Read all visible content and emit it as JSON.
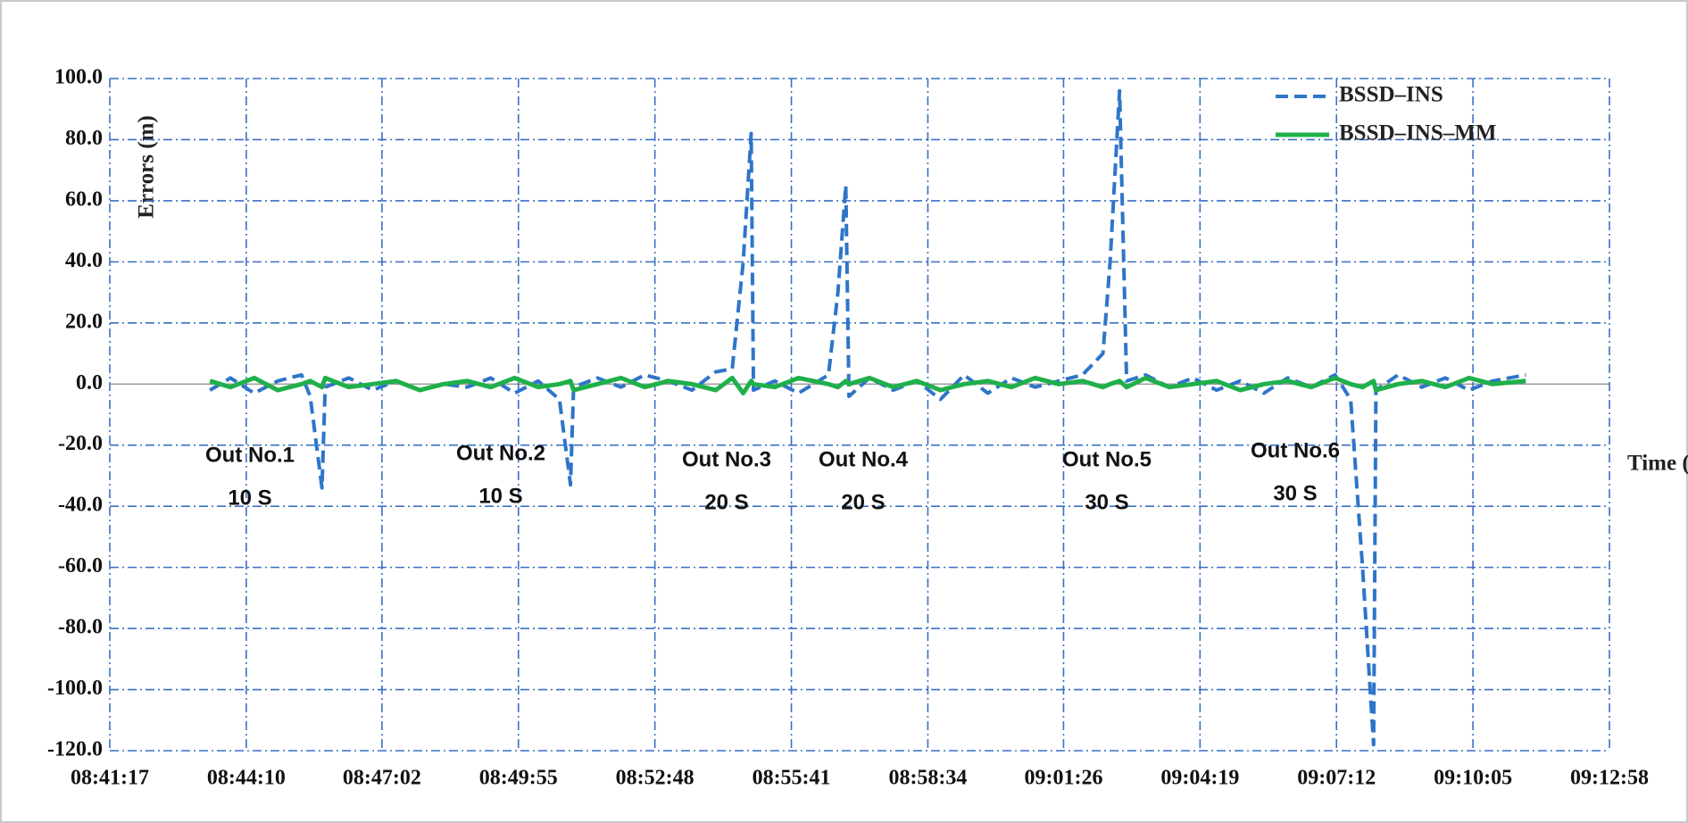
{
  "chart_data": {
    "type": "line",
    "y_label": "Errors (m)",
    "x_label": "Time (hh:mm:ss)",
    "x": [
      31404,
      31430,
      31460,
      31490,
      31520,
      31531,
      31546,
      31550,
      31580,
      31610,
      31640,
      31670,
      31700,
      31730,
      31760,
      31790,
      31820,
      31847,
      31861,
      31865,
      31895,
      31925,
      31955,
      31985,
      32015,
      32045,
      32066,
      32080,
      32090,
      32093,
      32120,
      32150,
      32188,
      32200,
      32210,
      32214,
      32240,
      32270,
      32300,
      32330,
      32360,
      32390,
      32420,
      32450,
      32480,
      32510,
      32536,
      32545,
      32557,
      32566,
      32590,
      32620,
      32650,
      32680,
      32710,
      32740,
      32770,
      32800,
      32830,
      32850,
      32865,
      32879,
      32882,
      32910,
      32940,
      32970,
      33000,
      33030,
      33072
    ],
    "series": [
      {
        "name": "BSSD–INS",
        "color": "#2e75c9",
        "dash": true,
        "values": [
          -2,
          2,
          -3,
          1,
          3,
          -4,
          -34,
          -1,
          2,
          -2,
          1,
          -2,
          0,
          -1,
          2,
          -3,
          1,
          -5,
          -33,
          -1,
          2,
          -1,
          3,
          1,
          -2,
          4,
          5,
          40,
          82,
          -2,
          1,
          -3,
          3,
          30,
          65,
          -4,
          2,
          -2,
          1,
          -5,
          3,
          -3,
          2,
          -1,
          1,
          3,
          10,
          40,
          96,
          1,
          3,
          -1,
          2,
          -2,
          1,
          -3,
          2,
          -1,
          3,
          -5,
          -60,
          -118,
          -2,
          3,
          -1,
          2,
          -2,
          1,
          3
        ]
      },
      {
        "name": "BSSD–INS–MM",
        "color": "#1fb04a",
        "dash": false,
        "values": [
          1,
          -1,
          2,
          -2,
          0,
          1,
          -1,
          2,
          -1,
          0,
          1,
          -2,
          0,
          1,
          -1,
          2,
          -1,
          0,
          1,
          -2,
          0,
          2,
          -1,
          1,
          0,
          -2,
          2,
          -3,
          1,
          0,
          -1,
          2,
          0,
          -1,
          1,
          0,
          2,
          -1,
          1,
          -2,
          0,
          1,
          -1,
          2,
          0,
          1,
          -1,
          0,
          1,
          -1,
          2,
          -1,
          0,
          1,
          -2,
          0,
          1,
          -1,
          2,
          0,
          -1,
          1,
          -2,
          0,
          1,
          -1,
          2,
          0,
          1
        ]
      }
    ],
    "xlim": [
      31277,
      33178
    ],
    "xticks": [
      {
        "value": 31277,
        "label": "08:41:17"
      },
      {
        "value": 31450,
        "label": "08:44:10"
      },
      {
        "value": 31622,
        "label": "08:47:02"
      },
      {
        "value": 31795,
        "label": "08:49:55"
      },
      {
        "value": 31968,
        "label": "08:52:48"
      },
      {
        "value": 32141,
        "label": "08:55:41"
      },
      {
        "value": 32314,
        "label": "08:58:34"
      },
      {
        "value": 32486,
        "label": "09:01:26"
      },
      {
        "value": 32659,
        "label": "09:04:19"
      },
      {
        "value": 32832,
        "label": "09:07:12"
      },
      {
        "value": 33005,
        "label": "09:10:05"
      },
      {
        "value": 33178,
        "label": "09:12:58"
      }
    ],
    "ylim": [
      -120,
      100
    ],
    "yticks": [
      {
        "value": -120,
        "label": "-120.0"
      },
      {
        "value": -100,
        "label": "-100.0"
      },
      {
        "value": -80,
        "label": "-80.0"
      },
      {
        "value": -60,
        "label": "-60.0"
      },
      {
        "value": -40,
        "label": "-40.0"
      },
      {
        "value": -20,
        "label": "-20.0"
      },
      {
        "value": 0,
        "label": "0.0"
      },
      {
        "value": 20,
        "label": "20.0"
      },
      {
        "value": 40,
        "label": "40.0"
      },
      {
        "value": 60,
        "label": "60.0"
      },
      {
        "value": 80,
        "label": "80.0"
      },
      {
        "value": 100,
        "label": "100.0"
      }
    ],
    "grid": true,
    "legend": "upper right",
    "annotations": [
      {
        "label": "Out No.1",
        "duration": "10 S"
      },
      {
        "label": "Out No.2",
        "duration": "10 S"
      },
      {
        "label": "Out No.3",
        "duration": "20 S"
      },
      {
        "label": "Out No.4",
        "duration": "20 S"
      },
      {
        "label": "Out No.5",
        "duration": "30 S"
      },
      {
        "label": "Out No.6",
        "duration": "30 S"
      }
    ]
  }
}
